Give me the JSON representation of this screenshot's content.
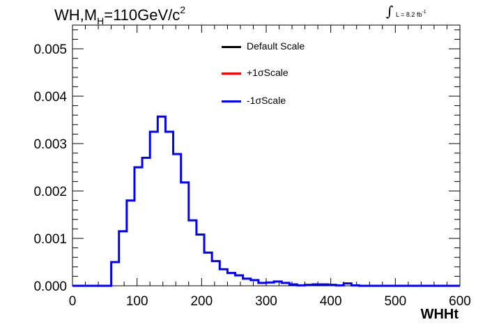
{
  "title": {
    "prefix": "WH,M",
    "sub": "H",
    "main": "=110GeV/c",
    "sup": "2"
  },
  "luminosity": {
    "symbol": "∫",
    "text": "L = 8.2 fb",
    "sup": "-1"
  },
  "legend": [
    {
      "label": "Default Scale",
      "color": "#000000"
    },
    {
      "label": "+1σScale",
      "color": "#ff0000"
    },
    {
      "label": "-1σScale",
      "color": "#0000ff"
    }
  ],
  "chart_data": {
    "type": "line",
    "xlabel": "WHHt",
    "ylabel": "",
    "xlim": [
      0,
      600
    ],
    "ylim": [
      0,
      0.0055
    ],
    "x_ticks": [
      "0",
      "100",
      "200",
      "300",
      "400",
      "500",
      "600"
    ],
    "y_ticks": [
      "0.000",
      "0.001",
      "0.002",
      "0.003",
      "0.004",
      "0.005"
    ],
    "bin_width": 12,
    "bin_edges_start": 0,
    "series": [
      {
        "name": "-1σScale",
        "color": "#0000ff",
        "values": [
          0,
          0,
          0,
          0,
          0,
          0.0005,
          0.00115,
          0.0018,
          0.0025,
          0.0027,
          0.00325,
          0.00357,
          0.00325,
          0.00278,
          0.00218,
          0.00138,
          0.00108,
          0.0007,
          0.00052,
          0.00035,
          0.00027,
          0.00022,
          0.00015,
          0.00012,
          6e-05,
          7e-05,
          9e-05,
          6e-05,
          3e-05,
          1e-05,
          2e-05,
          3e-05,
          3e-05,
          2e-05,
          1e-05,
          5e-05,
          1e-05,
          0,
          0,
          0,
          0,
          0,
          0,
          0,
          0,
          0,
          0,
          0,
          0,
          0
        ]
      }
    ]
  }
}
